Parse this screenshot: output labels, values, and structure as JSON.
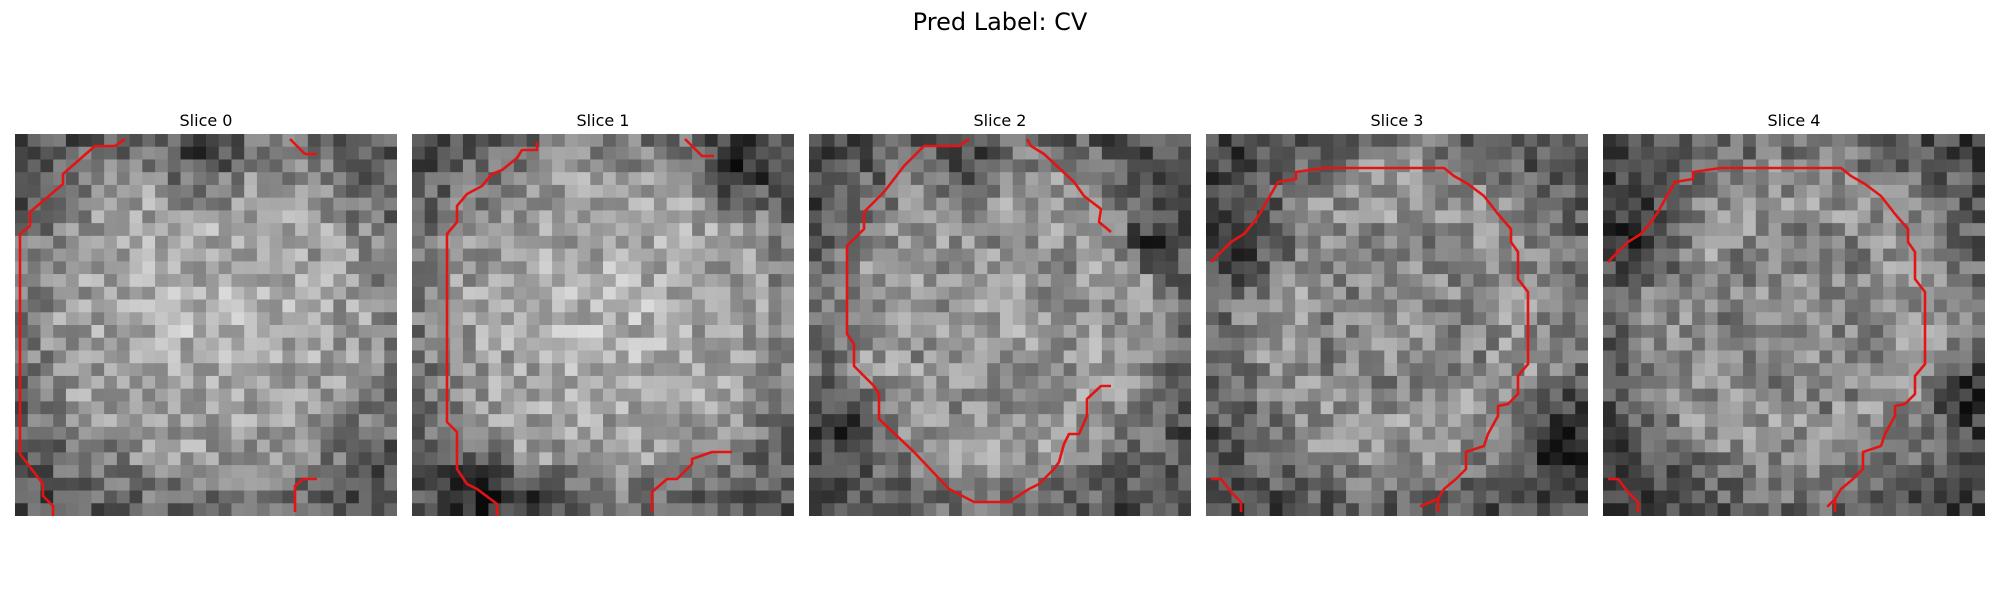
{
  "figure": {
    "suptitle": "Pred Label: CV",
    "outline_color": "#e41414",
    "panels": [
      {
        "title": "Slice 0"
      },
      {
        "title": "Slice 1"
      },
      {
        "title": "Slice 2"
      },
      {
        "title": "Slice 3"
      },
      {
        "title": "Slice 4"
      }
    ]
  }
}
